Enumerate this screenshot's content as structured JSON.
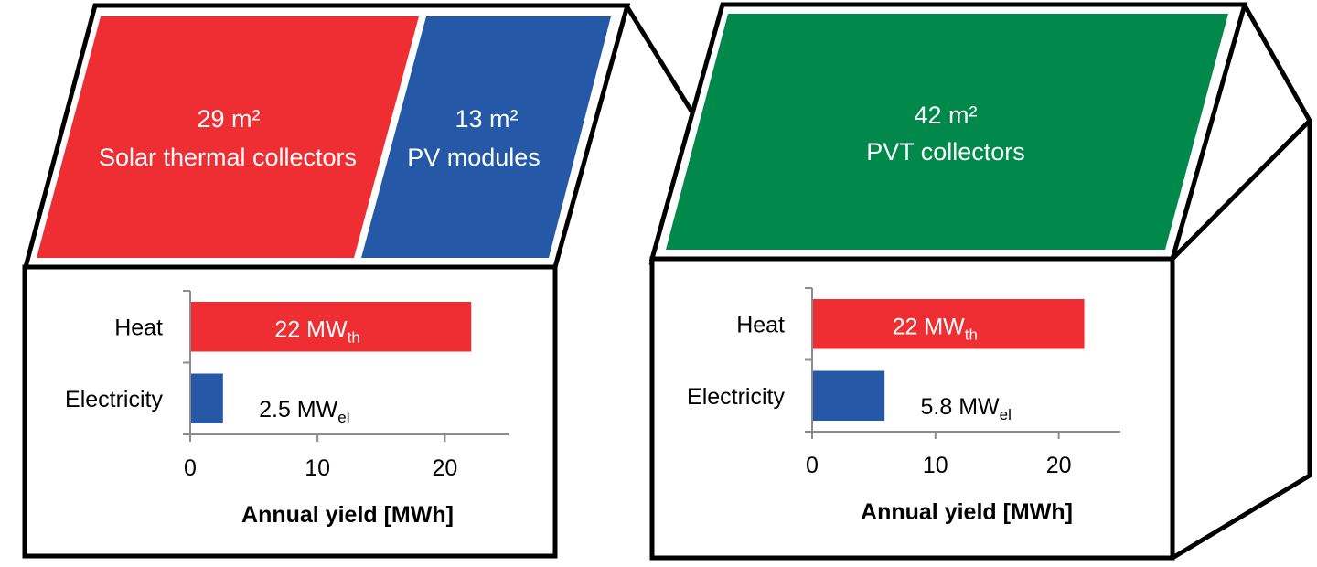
{
  "colors": {
    "thermal": "#ee2e32",
    "pv": "#2559a8",
    "pvt": "#00894a",
    "outline": "#000000",
    "axis": "#8c8c8c"
  },
  "left_house": {
    "roof_thermal": {
      "area": "29 m²",
      "label": "Solar thermal collectors"
    },
    "roof_pv": {
      "area": "13 m²",
      "label": "PV modules"
    }
  },
  "right_house": {
    "roof_pvt": {
      "area": "42 m²",
      "label": "PVT collectors"
    }
  },
  "chart_data": [
    {
      "type": "bar",
      "orientation": "horizontal",
      "categories": [
        "Heat",
        "Electricity"
      ],
      "values": [
        22,
        2.5
      ],
      "bar_labels": [
        {
          "main": "22 MW",
          "sub": "th"
        },
        {
          "main": "2.5 MW",
          "sub": "el"
        }
      ],
      "bar_colors": [
        "#ee2e32",
        "#2559a8"
      ],
      "xlabel": "Annual yield [MWh]",
      "xticks": [
        "0",
        "10",
        "20"
      ],
      "xlim": [
        0,
        25
      ]
    },
    {
      "type": "bar",
      "orientation": "horizontal",
      "categories": [
        "Heat",
        "Electricity"
      ],
      "values": [
        22,
        5.8
      ],
      "bar_labels": [
        {
          "main": "22 MW",
          "sub": "th"
        },
        {
          "main": "5.8 MW",
          "sub": "el"
        }
      ],
      "bar_colors": [
        "#ee2e32",
        "#2559a8"
      ],
      "xlabel": "Annual yield [MWh]",
      "xticks": [
        "0",
        "10",
        "20"
      ],
      "xlim": [
        0,
        25
      ]
    }
  ]
}
